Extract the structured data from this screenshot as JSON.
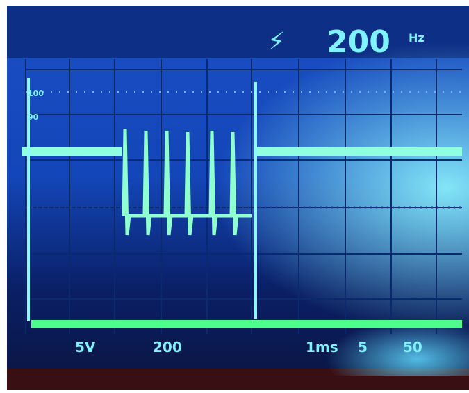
{
  "display": {
    "frequency": "200",
    "frequency_unit": "Hz",
    "scale_marks": [
      "100",
      "90"
    ],
    "bottom_readouts": [
      "5V",
      "200",
      "1ms",
      "5",
      "50"
    ]
  }
}
